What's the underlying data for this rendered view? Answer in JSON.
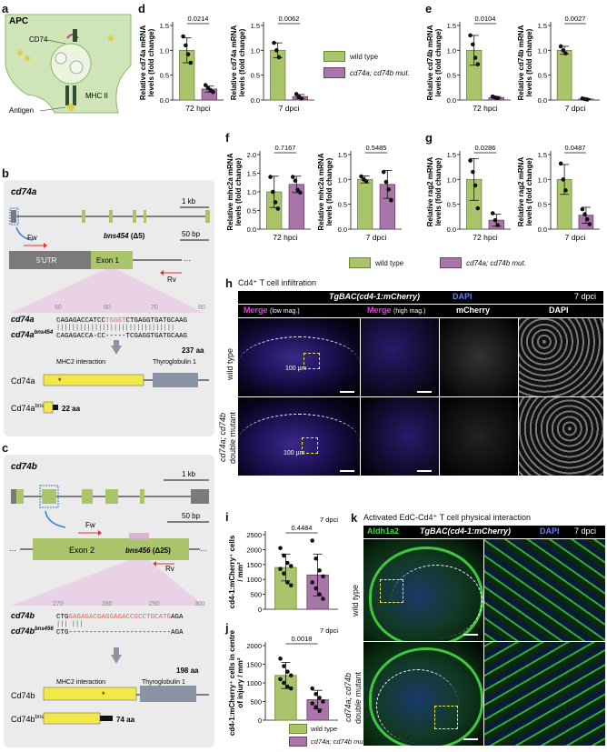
{
  "panels": {
    "a": {
      "letter": "a",
      "apc": "APC",
      "cd74": "CD74",
      "mhc": "MHC II",
      "antigen": "Antigen"
    },
    "b": {
      "letter": "b",
      "gene": "cd74a",
      "kb": "1 kb",
      "fw": "Fw",
      "rv": "Rv",
      "bp": "50 bp",
      "utr": "5'UTR",
      "exon": "Exon 1",
      "allele": "bns454",
      "delta": "(Δ5)",
      "pos": [
        "50",
        "60",
        "70",
        "80"
      ],
      "seq_wt_name": "cd74a",
      "seq_mut_name": "cd74a",
      "seq_mut_sup": "bns454",
      "seq_wt_a": "CAGAGACCATCC",
      "seq_wt_del": "TGGGT",
      "seq_wt_b": "CTGAGGTGATGCAAG",
      "seq_mut": "CAGAGACCA-CC-----TCGAGGTGATGCAAG",
      "prot_wt": "Cd74a",
      "prot_mut": "Cd74a",
      "prot_mut_sup": "bns454",
      "mhc2": "MHC2 interaction",
      "thyro": "Thyroglobulin 1",
      "aa_wt": "237 aa",
      "aa_mut": "22 aa"
    },
    "c": {
      "letter": "c",
      "gene": "cd74b",
      "kb": "1 kb",
      "fw": "Fw",
      "rv": "Rv",
      "bp": "50 bp",
      "exon": "Exon 2",
      "allele": "bns456",
      "delta": "(Δ25)",
      "pos": [
        "270",
        "280",
        "290",
        "300"
      ],
      "seq_wt_name": "cd74b",
      "seq_mut_name": "cd74b",
      "seq_mut_sup": "bns456",
      "seq_wt_a": "CTG",
      "seq_wt_del": "GAGAGACGAGGAGACCGCCTGCATG",
      "seq_wt_b": "AGA",
      "seq_mut": "CTG-------------------------AGA",
      "prot_wt": "Cd74b",
      "prot_mut": "Cd74b",
      "prot_mut_sup": "bns456",
      "mhc2": "MHC2 interaction",
      "thyro": "Thyroglobulin 1",
      "aa_wt": "198 aa",
      "aa_mut": "74 aa"
    },
    "d": {
      "letter": "d"
    },
    "e": {
      "letter": "e"
    },
    "f": {
      "letter": "f"
    },
    "g": {
      "letter": "g"
    },
    "h": {
      "letter": "h",
      "title": "Cd4⁺ T cell infiltration",
      "transgene": "TgBAC(cd4-1:mCherry)",
      "dapi": "DAPI",
      "time": "7 dpci",
      "col1": "Merge",
      "col1_sub": "(low mag.)",
      "col2": "Merge",
      "col2_sub": "(high mag.)",
      "col3": "mCherry",
      "col4": "DAPI",
      "row1": "wild type",
      "row2a": "cd74a; cd74b",
      "row2b": "double mutant",
      "scale": "100 µm"
    },
    "i": {
      "letter": "i"
    },
    "j": {
      "letter": "j"
    },
    "k": {
      "letter": "k",
      "title": "Activated EdC-Cd4⁺ T cell physical interaction",
      "aldh": "Aldh1a2",
      "transgene": "TgBAC(cd4-1:mCherry)",
      "dapi": "DAPI",
      "time": "7 dpci",
      "row1": "wild type",
      "row2a": "cd74a; cd74b",
      "row2b": "double mutant"
    }
  },
  "legend": {
    "wt": "wild type",
    "mut": "cd74a; cd74b mut."
  },
  "colors": {
    "wt": "#a9c46a",
    "mut": "#a876a8",
    "wt_dark": "#6b8a2e",
    "mut_dark": "#6d3d6d",
    "green_box": "#c8dc8a",
    "grey_box": "#8a93a3",
    "yellow": "#f2e84a",
    "panel_bg": "#ebebeb"
  },
  "chart_data": [
    {
      "id": "d1",
      "type": "bar",
      "ylabel": "Relative cd74a mRNA levels (fold change)",
      "categories": [
        "72 hpci"
      ],
      "ylim": [
        0,
        1.5
      ],
      "yticks": [
        "0.0",
        "0.5",
        "1.0",
        "1.5"
      ],
      "pvalue": "0.0214",
      "series": [
        {
          "name": "wild type",
          "mean": 1.0,
          "sd": 0.25,
          "points": [
            1.28,
            1.1,
            0.92,
            0.75
          ]
        },
        {
          "name": "cd74a; cd74b mut.",
          "mean": 0.22,
          "sd": 0.06,
          "points": [
            0.3,
            0.24,
            0.2,
            0.16
          ]
        }
      ]
    },
    {
      "id": "d2",
      "type": "bar",
      "ylabel": "Relative cd74a mRNA levels (fold change)",
      "categories": [
        "7 dpci"
      ],
      "ylim": [
        0,
        1.5
      ],
      "yticks": [
        "0.0",
        "0.5",
        "1.0",
        "1.5"
      ],
      "pvalue": "0.0062",
      "series": [
        {
          "name": "wild type",
          "mean": 1.0,
          "sd": 0.15,
          "points": [
            1.15,
            1.0,
            0.86
          ]
        },
        {
          "name": "cd74a; cd74b mut.",
          "mean": 0.07,
          "sd": 0.04,
          "points": [
            0.12,
            0.06,
            0.03
          ]
        }
      ]
    },
    {
      "id": "e1",
      "type": "bar",
      "ylabel": "Relative cd74b mRNA levels (fold change)",
      "categories": [
        "72 hpci"
      ],
      "ylim": [
        0,
        1.5
      ],
      "yticks": [
        "0.0",
        "0.5",
        "1.0",
        "1.5"
      ],
      "pvalue": "0.0104",
      "series": [
        {
          "name": "wild type",
          "mean": 1.0,
          "sd": 0.3,
          "points": [
            1.3,
            1.12,
            0.85,
            0.72
          ]
        },
        {
          "name": "cd74a; cd74b mut.",
          "mean": 0.05,
          "sd": 0.02,
          "points": [
            0.07,
            0.05,
            0.04
          ]
        }
      ]
    },
    {
      "id": "e2",
      "type": "bar",
      "ylabel": "Relative cd74b mRNA levels (fold change)",
      "categories": [
        "7 dpci"
      ],
      "ylim": [
        0,
        1.5
      ],
      "yticks": [
        "0.0",
        "0.5",
        "1.0",
        "1.5"
      ],
      "pvalue": "0.0027",
      "series": [
        {
          "name": "wild type",
          "mean": 1.0,
          "sd": 0.08,
          "points": [
            1.08,
            1.0,
            0.94
          ]
        },
        {
          "name": "cd74a; cd74b mut.",
          "mean": 0.02,
          "sd": 0.01,
          "points": [
            0.03,
            0.02,
            0.01
          ]
        }
      ]
    },
    {
      "id": "f1",
      "type": "bar",
      "ylabel": "Relative mhc2a mRNA levels (fold change)",
      "categories": [
        "72 hpci"
      ],
      "ylim": [
        0,
        2.0
      ],
      "yticks": [
        "0.0",
        "0.5",
        "1.0",
        "1.5",
        "2.0"
      ],
      "pvalue": "0.7167",
      "series": [
        {
          "name": "wild type",
          "mean": 1.0,
          "sd": 0.42,
          "points": [
            1.4,
            1.0,
            0.72,
            0.55
          ]
        },
        {
          "name": "cd74a; cd74b mut.",
          "mean": 1.2,
          "sd": 0.22,
          "points": [
            1.4,
            1.3,
            1.05,
            0.98
          ]
        }
      ]
    },
    {
      "id": "f2",
      "type": "bar",
      "ylabel": "Relative mhc2a mRNA levels (fold change)",
      "categories": [
        "7 dpci"
      ],
      "ylim": [
        0,
        1.5
      ],
      "yticks": [
        "0.0",
        "0.5",
        "1.0",
        "1.5"
      ],
      "pvalue": "0.5485",
      "series": [
        {
          "name": "wild type",
          "mean": 1.0,
          "sd": 0.07,
          "points": [
            1.06,
            1.0,
            0.96
          ]
        },
        {
          "name": "cd74a; cd74b mut.",
          "mean": 0.9,
          "sd": 0.28,
          "points": [
            1.15,
            0.95,
            0.8,
            0.58
          ]
        }
      ]
    },
    {
      "id": "g1",
      "type": "bar",
      "ylabel": "Relative rag2 mRNA levels (fold change)",
      "categories": [
        "72 hpci"
      ],
      "ylim": [
        0,
        1.5
      ],
      "yticks": [
        "0.0",
        "0.5",
        "1.0",
        "1.5"
      ],
      "pvalue": "0.0286",
      "series": [
        {
          "name": "wild type",
          "mean": 1.0,
          "sd": 0.42,
          "points": [
            1.38,
            1.15,
            0.88,
            0.42
          ]
        },
        {
          "name": "cd74a; cd74b mut.",
          "mean": 0.18,
          "sd": 0.12,
          "points": [
            0.32,
            0.18,
            0.08
          ]
        }
      ]
    },
    {
      "id": "g2",
      "type": "bar",
      "ylabel": "Relative rag2 mRNA levels (fold change)",
      "categories": [
        "7 dpci"
      ],
      "ylim": [
        0,
        1.5
      ],
      "yticks": [
        "0.0",
        "0.5",
        "1.0",
        "1.5"
      ],
      "pvalue": "0.0487",
      "series": [
        {
          "name": "wild type",
          "mean": 1.0,
          "sd": 0.3,
          "points": [
            1.32,
            1.0,
            0.78
          ]
        },
        {
          "name": "cd74a; cd74b mut.",
          "mean": 0.28,
          "sd": 0.16,
          "points": [
            0.4,
            0.3,
            0.2,
            0.1
          ]
        }
      ]
    },
    {
      "id": "i",
      "type": "bar",
      "ylabel": "cd4-1:mCherry⁺ cells / mm²",
      "title": "7 dpci",
      "categories": [
        ""
      ],
      "ylim": [
        0,
        2500
      ],
      "yticks": [
        "0",
        "500",
        "1000",
        "1500",
        "2000",
        "2500"
      ],
      "pvalue": "0.4484",
      "series": [
        {
          "name": "wild type",
          "mean": 1400,
          "sd": 450,
          "points": [
            2050,
            1800,
            1550,
            1450,
            1350,
            1200,
            900,
            800
          ]
        },
        {
          "name": "cd74a; cd74b mut.",
          "mean": 1150,
          "sd": 700,
          "points": [
            2300,
            1700,
            1300,
            1100,
            900,
            700,
            500,
            350
          ]
        }
      ]
    },
    {
      "id": "j",
      "type": "bar",
      "ylabel": "cd4-1:mCherry⁺ cells in centre of injury / mm²",
      "title": "7 dpci",
      "categories": [
        ""
      ],
      "ylim": [
        0,
        2000
      ],
      "yticks": [
        "0",
        "500",
        "1000",
        "1500",
        "2000"
      ],
      "pvalue": "0.0018",
      "series": [
        {
          "name": "wild type",
          "mean": 1200,
          "sd": 350,
          "points": [
            1650,
            1450,
            1300,
            1200,
            1100,
            1000,
            900,
            850
          ]
        },
        {
          "name": "cd74a; cd74b mut.",
          "mean": 550,
          "sd": 250,
          "points": [
            850,
            700,
            600,
            500,
            450,
            350,
            250
          ]
        }
      ]
    }
  ]
}
